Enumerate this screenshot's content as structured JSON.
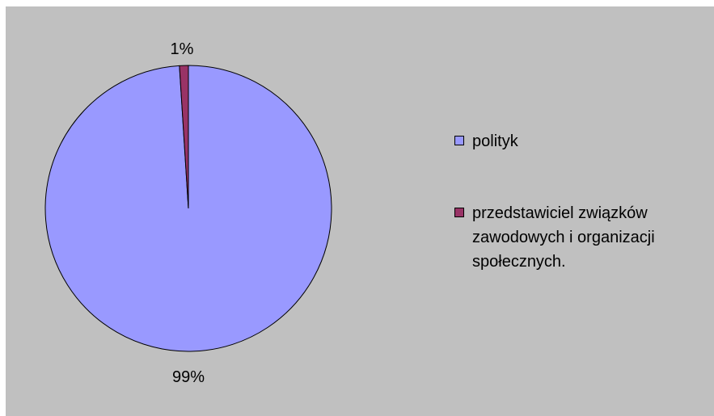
{
  "chart_data": {
    "type": "pie",
    "categories": [
      "polityk",
      "przedstawiciel związków zawodowych i organizacji społecznych."
    ],
    "values": [
      99,
      1
    ],
    "data_labels": [
      "99%",
      "1%"
    ],
    "colors": [
      "#9999ff",
      "#993366"
    ],
    "legend_position": "right",
    "background": "#c0c0c0"
  }
}
